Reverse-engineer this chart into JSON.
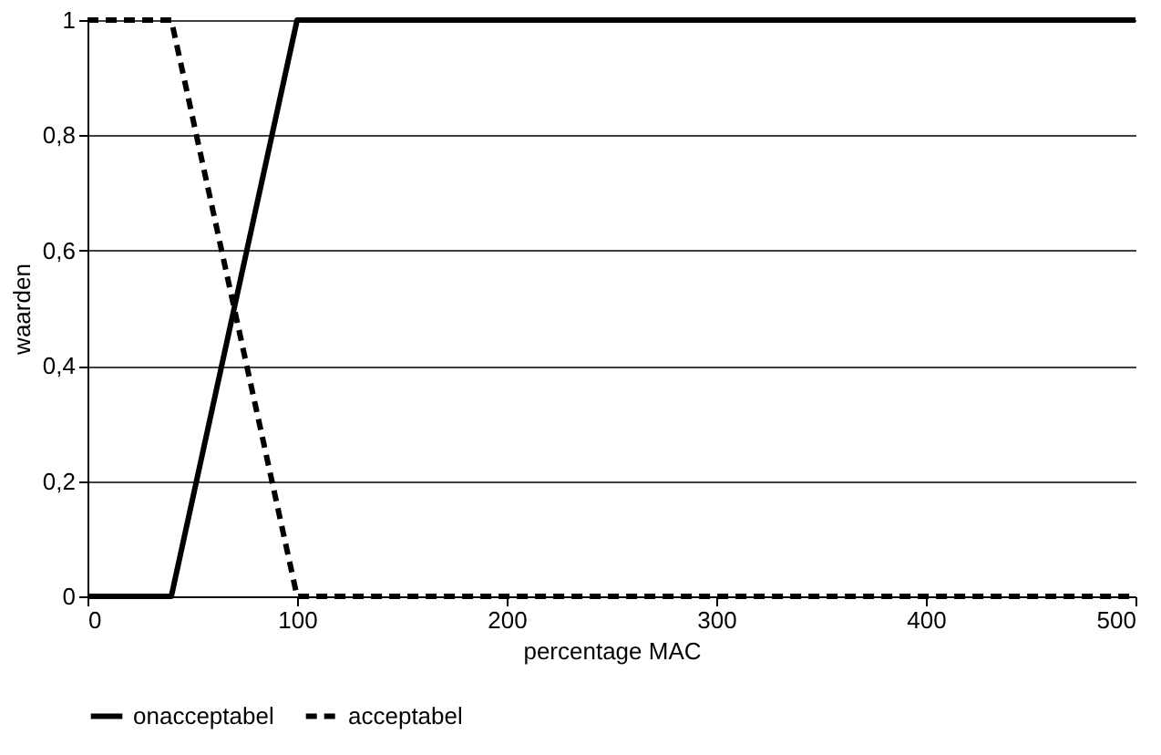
{
  "chart_data": {
    "type": "line",
    "xlabel": "percentage MAC",
    "ylabel": "waarden",
    "xlim": [
      0,
      500
    ],
    "xticks": [
      0,
      100,
      200,
      300,
      400,
      500
    ],
    "ylim": [
      0,
      1
    ],
    "yticks": [
      0,
      {
        "value": 0.2,
        "label": "0,2"
      },
      {
        "value": 0.4,
        "label": "0,4"
      },
      {
        "value": 0.6,
        "label": "0,6"
      },
      {
        "value": 0.8,
        "label": "0,8"
      },
      1
    ],
    "grid": "y",
    "legend": "bottom",
    "marker": "none",
    "series": [
      {
        "name": "onacceptabel",
        "color": "#000000",
        "line_style": "solid",
        "x": [
          0,
          40,
          100,
          500
        ],
        "values": [
          0,
          0,
          1,
          1
        ]
      },
      {
        "name": "acceptabel",
        "color": "#000000",
        "line_style": "dashed",
        "x": [
          0,
          40,
          100,
          500
        ],
        "values": [
          1,
          1,
          0,
          0
        ]
      }
    ]
  }
}
